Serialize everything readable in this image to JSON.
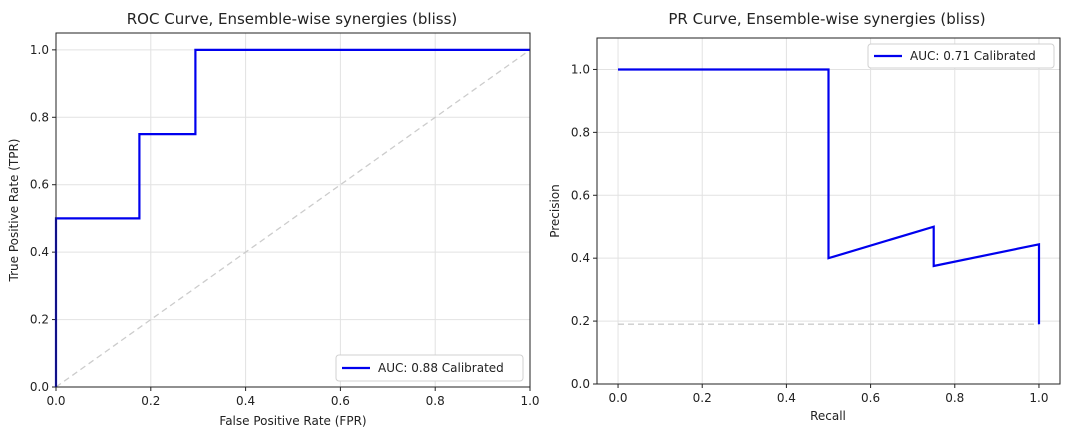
{
  "chart_data": [
    {
      "type": "line",
      "title": "ROC Curve, Ensemble-wise synergies (bliss)",
      "xlabel": "False Positive Rate (FPR)",
      "ylabel": "True Positive Rate (TPR)",
      "xlim": [
        0,
        1
      ],
      "ylim": [
        0,
        1.05
      ],
      "xticks": [
        "0.0",
        "0.2",
        "0.4",
        "0.6",
        "0.8",
        "1.0"
      ],
      "yticks": [
        "0.0",
        "0.2",
        "0.4",
        "0.6",
        "0.8",
        "1.0"
      ],
      "xtick_values": [
        0,
        0.2,
        0.4,
        0.6,
        0.8,
        1.0
      ],
      "ytick_values": [
        0,
        0.2,
        0.4,
        0.6,
        0.8,
        1.0
      ],
      "grid": true,
      "legend_position": "lower right",
      "series": [
        {
          "name": "AUC: 0.88 Calibrated",
          "color": "#0000ee",
          "x": [
            0,
            0,
            0.176,
            0.176,
            0.294,
            0.294,
            1.0
          ],
          "y": [
            0,
            0.5,
            0.5,
            0.75,
            0.75,
            1.0,
            1.0
          ]
        },
        {
          "color": "#cccccc",
          "style": "dashed",
          "x": [
            0,
            1
          ],
          "y": [
            0,
            1
          ]
        }
      ]
    },
    {
      "type": "line",
      "title": "PR Curve, Ensemble-wise synergies (bliss)",
      "xlabel": "Recall",
      "ylabel": "Precision",
      "xlim": [
        -0.05,
        1.05
      ],
      "ylim": [
        0,
        1.1
      ],
      "xticks": [
        "0.0",
        "0.2",
        "0.4",
        "0.6",
        "0.8",
        "1.0"
      ],
      "yticks": [
        "0.0",
        "0.2",
        "0.4",
        "0.6",
        "0.8",
        "1.0"
      ],
      "xtick_values": [
        0,
        0.2,
        0.4,
        0.6,
        0.8,
        1.0
      ],
      "ytick_values": [
        0,
        0.2,
        0.4,
        0.6,
        0.8,
        1.0
      ],
      "grid": true,
      "legend_position": "upper right",
      "series": [
        {
          "name": "AUC: 0.71 Calibrated",
          "color": "#0000ee",
          "x": [
            0,
            0.5,
            0.5,
            0.75,
            0.75,
            1.0,
            1.0
          ],
          "y": [
            1.0,
            1.0,
            0.4,
            0.5,
            0.375,
            0.444,
            0.19
          ]
        },
        {
          "color": "#cccccc",
          "style": "dashed",
          "x": [
            0,
            1.0
          ],
          "y": [
            0.19,
            0.19
          ]
        }
      ]
    }
  ]
}
